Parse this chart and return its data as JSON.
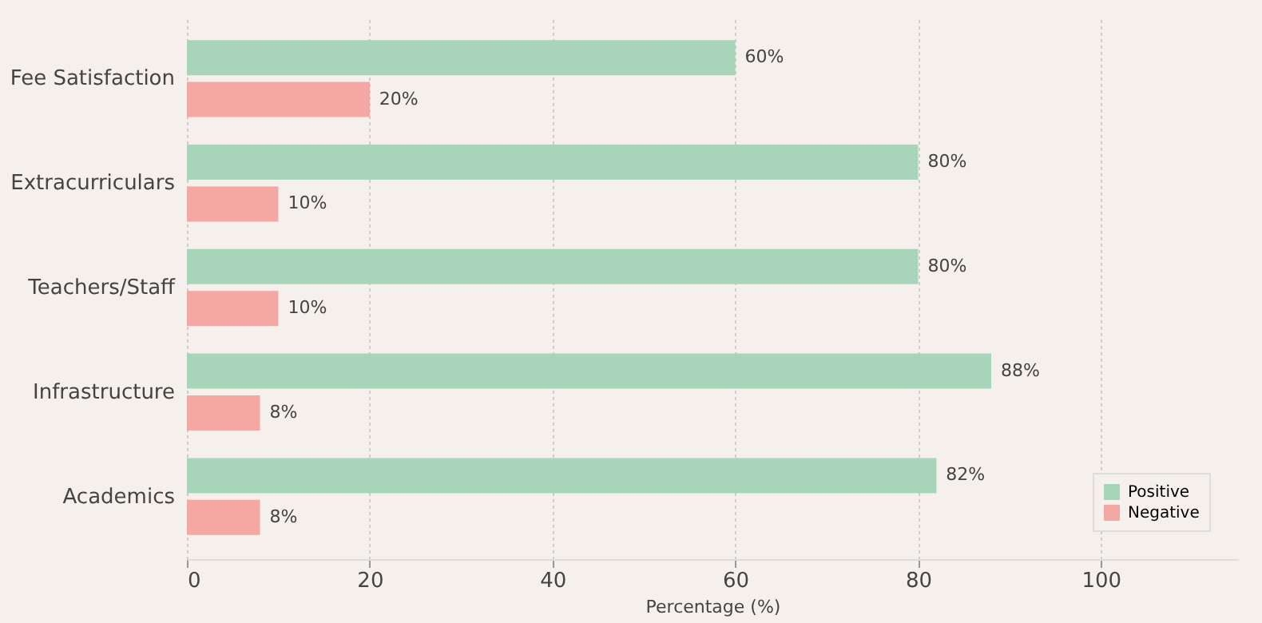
{
  "chart_data": {
    "type": "bar",
    "orientation": "horizontal",
    "xlabel": "Percentage (%)",
    "categories": [
      "Fee Satisfaction",
      "Extracurriculars",
      "Teachers/Staff",
      "Infrastructure",
      "Academics"
    ],
    "series": [
      {
        "name": "Positive",
        "color": "#a8d5ba",
        "values": [
          60,
          80,
          80,
          88,
          82
        ],
        "value_labels": [
          "60%",
          "80%",
          "80%",
          "88%",
          "82%"
        ]
      },
      {
        "name": "Negative",
        "color": "#f4a7a3",
        "values": [
          20,
          10,
          10,
          8,
          8
        ],
        "value_labels": [
          "20%",
          "10%",
          "10%",
          "8%",
          "8%"
        ]
      }
    ],
    "xlim": [
      0,
      115
    ],
    "xticks": [
      0,
      20,
      40,
      60,
      80,
      100
    ],
    "grid": "x",
    "legend": "bottom right"
  }
}
